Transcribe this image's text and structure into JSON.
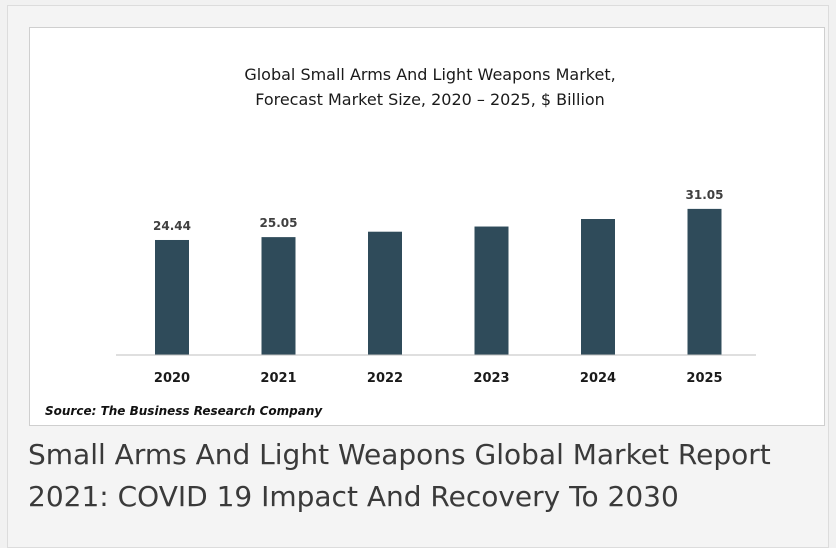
{
  "chart_data": {
    "type": "bar",
    "title_lines": [
      "Global Small Arms And Light Weapons Market,",
      "Forecast Market Size, 2020 – 2025, $ Billion"
    ],
    "categories": [
      "2020",
      "2021",
      "2022",
      "2023",
      "2024",
      "2025"
    ],
    "values": [
      24.44,
      25.05,
      26.2,
      27.3,
      28.9,
      31.05
    ],
    "data_labels": [
      "24.44",
      "25.05",
      "",
      "",
      "",
      "31.05"
    ],
    "ylim": [
      0,
      34
    ],
    "bar_color": "#2f4b5a",
    "grid": false,
    "legend": "none"
  },
  "source": "Source: The Business Research Company",
  "caption_lines": [
    "Small Arms And Light Weapons Global Market Report",
    "2021: COVID 19 Impact And Recovery To 2030"
  ]
}
